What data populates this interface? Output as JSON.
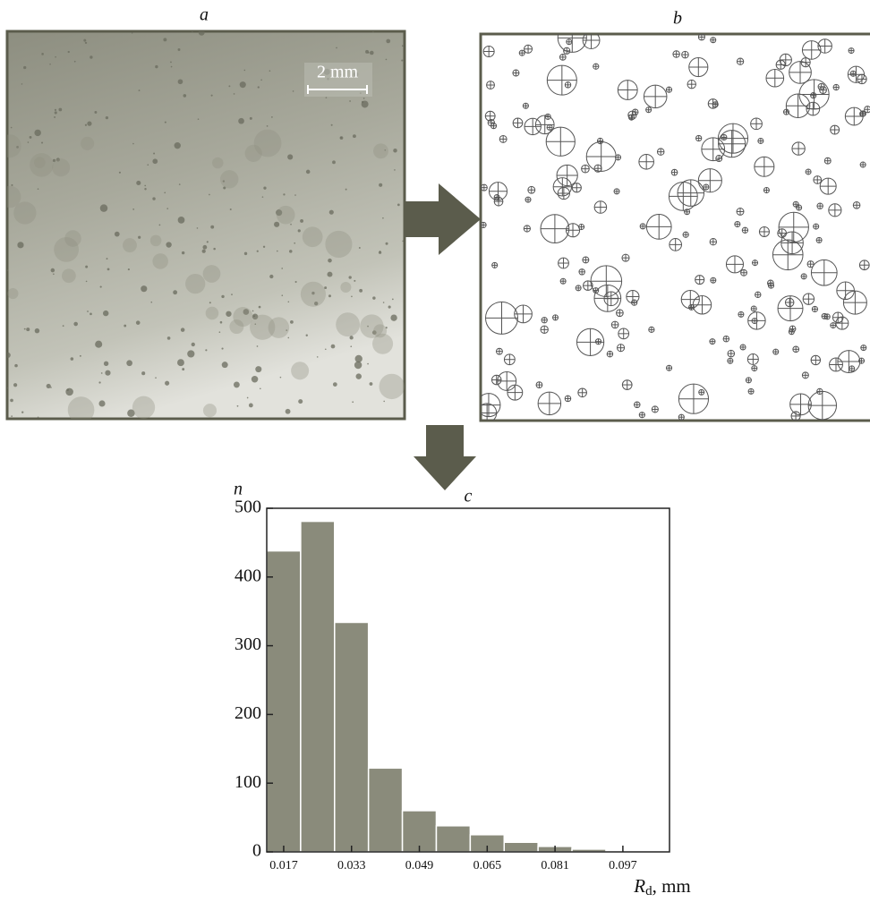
{
  "panels": {
    "a": {
      "label": "a",
      "scale_label": "2 mm"
    },
    "b": {
      "label": "b"
    }
  },
  "chart_data": {
    "type": "histogram",
    "title": "c",
    "y_label": "n",
    "x_label_parts": [
      "R",
      "d",
      ", mm"
    ],
    "bins": [
      0.013,
      0.021,
      0.029,
      0.037,
      0.045,
      0.053,
      0.061,
      0.069,
      0.077,
      0.085,
      0.093
    ],
    "counts": [
      438,
      481,
      334,
      122,
      60,
      38,
      25,
      14,
      8,
      4
    ],
    "color": "#8a8b7b",
    "xlim": [
      0.013,
      0.108
    ],
    "xticks": [
      0.017,
      0.033,
      0.049,
      0.065,
      0.081,
      0.097
    ],
    "ylim": [
      0,
      500
    ],
    "yticks": [
      0,
      100,
      200,
      300,
      400,
      500
    ]
  }
}
